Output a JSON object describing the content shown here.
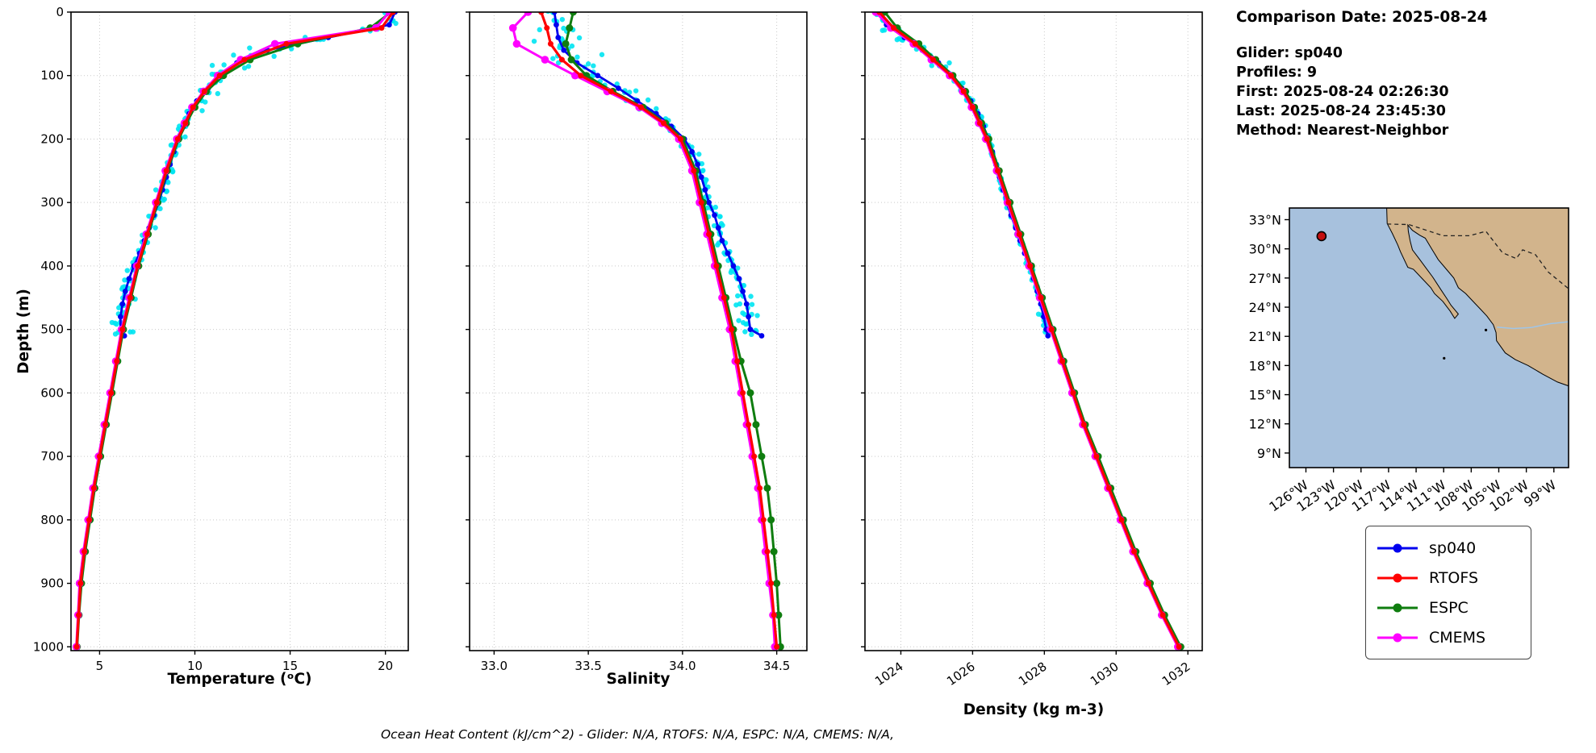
{
  "info_panel": {
    "comparison_date": "Comparison Date: 2025-08-24",
    "glider": "Glider: sp040",
    "profiles": "Profiles: 9",
    "first": "First: 2025-08-24 02:26:30",
    "last": "Last: 2025-08-24 23:45:30",
    "method": "Method: Nearest-Neighbor"
  },
  "footnote": "Ocean Heat Content (kJ/cm^2) - Glider: N/A,  RTOFS: N/A,  ESPC: N/A,  CMEMS: N/A,",
  "legend": {
    "items": [
      {
        "label": "sp040",
        "color": "#0000ee"
      },
      {
        "label": "RTOFS",
        "color": "#ff0000"
      },
      {
        "label": "ESPC",
        "color": "#0f7d0f"
      },
      {
        "label": "CMEMS",
        "color": "#ff00ff"
      }
    ]
  },
  "map": {
    "ocean_color": "#a7c1dd",
    "land_color": "#d2b48c",
    "lat_ticks": [
      {
        "v": 33,
        "label": "33°N"
      },
      {
        "v": 30,
        "label": "30°N"
      },
      {
        "v": 27,
        "label": "27°N"
      },
      {
        "v": 24,
        "label": "24°N"
      },
      {
        "v": 21,
        "label": "21°N"
      },
      {
        "v": 18,
        "label": "18°N"
      },
      {
        "v": 15,
        "label": "15°N"
      },
      {
        "v": 12,
        "label": "12°N"
      },
      {
        "v": 9,
        "label": "9°N"
      }
    ],
    "lon_ticks": [
      {
        "v": -126,
        "label": "126°W"
      },
      {
        "v": -123,
        "label": "123°W"
      },
      {
        "v": -120,
        "label": "120°W"
      },
      {
        "v": -117,
        "label": "117°W"
      },
      {
        "v": -114,
        "label": "114°W"
      },
      {
        "v": -111,
        "label": "111°W"
      },
      {
        "v": -108,
        "label": "108°W"
      },
      {
        "v": -105,
        "label": "105°W"
      },
      {
        "v": -102,
        "label": "102°W"
      },
      {
        "v": -99,
        "label": "99°W"
      }
    ],
    "lon_range": [
      -127.8,
      -97.4
    ],
    "lat_range": [
      7.5,
      34.2
    ],
    "glider_position": {
      "lon": -124.3,
      "lat": 31.3,
      "marker_color": "#c41010"
    },
    "land_polygon": [
      [
        -97.4,
        34.2
      ],
      [
        -117.2,
        34.2
      ],
      [
        -117.15,
        32.6
      ],
      [
        -116.6,
        31.6
      ],
      [
        -116.0,
        30.4
      ],
      [
        -115.7,
        29.7
      ],
      [
        -114.9,
        28.1
      ],
      [
        -114.3,
        27.9
      ],
      [
        -113.3,
        26.9
      ],
      [
        -112.4,
        26.0
      ],
      [
        -112.0,
        25.4
      ],
      [
        -111.1,
        24.6
      ],
      [
        -110.3,
        23.6
      ],
      [
        -109.8,
        22.85
      ],
      [
        -109.4,
        23.3
      ],
      [
        -110.2,
        24.2
      ],
      [
        -110.6,
        24.8
      ],
      [
        -111.3,
        25.8
      ],
      [
        -112.2,
        27.1
      ],
      [
        -112.9,
        28.0
      ],
      [
        -113.6,
        28.9
      ],
      [
        -114.4,
        29.9
      ],
      [
        -114.65,
        30.8
      ],
      [
        -114.85,
        31.8
      ],
      [
        -114.9,
        32.45
      ],
      [
        -114.4,
        31.9
      ],
      [
        -113.6,
        31.4
      ],
      [
        -113.0,
        31.1
      ],
      [
        -112.3,
        30.0
      ],
      [
        -111.6,
        28.9
      ],
      [
        -110.7,
        27.9
      ],
      [
        -109.9,
        27.0
      ],
      [
        -109.4,
        26.0
      ],
      [
        -108.6,
        25.4
      ],
      [
        -107.9,
        24.7
      ],
      [
        -107.0,
        23.8
      ],
      [
        -106.3,
        23.1
      ],
      [
        -105.6,
        22.2
      ],
      [
        -105.3,
        21.4
      ],
      [
        -105.25,
        20.55
      ],
      [
        -104.3,
        19.3
      ],
      [
        -103.2,
        18.6
      ],
      [
        -101.8,
        18.0
      ],
      [
        -100.2,
        17.1
      ],
      [
        -98.6,
        16.3
      ],
      [
        -97.4,
        15.9
      ]
    ],
    "border_dashed": [
      [
        -117.15,
        32.55
      ],
      [
        -114.8,
        32.5
      ],
      [
        -111.05,
        31.35
      ],
      [
        -108.2,
        31.35
      ],
      [
        -106.4,
        31.8
      ],
      [
        -104.6,
        29.6
      ],
      [
        -103.1,
        29.0
      ],
      [
        -102.4,
        29.9
      ],
      [
        -101.0,
        29.4
      ],
      [
        -99.6,
        27.6
      ],
      [
        -97.4,
        25.9
      ]
    ],
    "river": [
      [
        -105.2,
        21.95
      ],
      [
        -103.4,
        21.8
      ],
      [
        -101.5,
        21.9
      ],
      [
        -99.4,
        22.3
      ],
      [
        -97.4,
        22.5
      ]
    ],
    "islands": [
      [
        -110.95,
        18.75
      ],
      [
        -106.4,
        21.65
      ]
    ]
  },
  "chart_data": {
    "type": "line",
    "description": "Glider vs model vertical ocean profiles (value vs depth, depth increases downward)",
    "grid": true,
    "depth_axis": {
      "label": "Depth (m)",
      "range": [
        0,
        1006
      ],
      "ticks": [
        0,
        100,
        200,
        300,
        400,
        500,
        600,
        700,
        800,
        900,
        1000
      ],
      "tick_labels": [
        "0",
        "100",
        "200",
        "300",
        "400",
        "500",
        "600",
        "700",
        "800",
        "900",
        "1000"
      ]
    },
    "panels": [
      {
        "id": "temperature",
        "xlabel": "Temperature (ᵒC)",
        "xlim": [
          3.5,
          21.2
        ],
        "xticks": [
          5,
          10,
          15,
          20
        ],
        "xtick_labels": [
          "5",
          "10",
          "15",
          "20"
        ],
        "rotate_xticks": false
      },
      {
        "id": "salinity",
        "xlabel": "Salinity",
        "xlim": [
          32.87,
          34.66
        ],
        "xticks": [
          33.0,
          33.5,
          34.0,
          34.5
        ],
        "xtick_labels": [
          "33.0",
          "33.5",
          "34.0",
          "34.5"
        ],
        "rotate_xticks": false
      },
      {
        "id": "density",
        "xlabel": "Density (kg m-3)",
        "xlim": [
          1023.0,
          1032.4
        ],
        "xticks": [
          1024,
          1026,
          1028,
          1030,
          1032
        ],
        "xtick_labels": [
          "1024",
          "1026",
          "1028",
          "1030",
          "1032"
        ],
        "rotate_xticks": true
      }
    ],
    "series": [
      {
        "name": "sp040",
        "color": "#0000ee",
        "marker_r": 3.4,
        "line_w": 2.8,
        "depths": [
          0,
          20,
          40,
          60,
          80,
          100,
          120,
          140,
          160,
          180,
          200,
          220,
          240,
          260,
          280,
          300,
          320,
          340,
          360,
          380,
          400,
          420,
          440,
          460,
          480,
          500,
          510
        ],
        "temperature": [
          20.5,
          20.2,
          17.0,
          13.8,
          12.2,
          11.4,
          10.7,
          10.1,
          9.7,
          9.4,
          9.15,
          8.9,
          8.7,
          8.5,
          8.3,
          8.1,
          7.85,
          7.6,
          7.35,
          7.1,
          6.8,
          6.55,
          6.35,
          6.2,
          6.1,
          6.1,
          6.3
        ],
        "salinity": [
          33.32,
          33.33,
          33.34,
          33.37,
          33.44,
          33.55,
          33.66,
          33.76,
          33.86,
          33.94,
          34.01,
          34.05,
          34.08,
          34.1,
          34.12,
          34.14,
          34.17,
          34.19,
          34.21,
          34.24,
          34.27,
          34.3,
          34.32,
          34.34,
          34.35,
          34.36,
          34.42
        ],
        "density": [
          1023.35,
          1023.6,
          1024.1,
          1024.6,
          1025.05,
          1025.4,
          1025.7,
          1025.95,
          1026.15,
          1026.3,
          1026.45,
          1026.55,
          1026.65,
          1026.75,
          1026.85,
          1026.95,
          1027.07,
          1027.2,
          1027.32,
          1027.45,
          1027.58,
          1027.7,
          1027.8,
          1027.9,
          1027.98,
          1028.05,
          1028.1
        ]
      },
      {
        "name": "RTOFS",
        "color": "#ff0000",
        "marker_r": 3.5,
        "line_w": 3.2,
        "depths": [
          0,
          25,
          50,
          75,
          100,
          125,
          150,
          175,
          200,
          250,
          300,
          350,
          400,
          450,
          500,
          550,
          600,
          650,
          700,
          750,
          800,
          850,
          900,
          950,
          1000
        ],
        "temperature": [
          20.4,
          19.8,
          14.8,
          12.6,
          11.3,
          10.5,
          9.9,
          9.5,
          9.1,
          8.5,
          8.0,
          7.5,
          7.0,
          6.6,
          6.2,
          5.9,
          5.6,
          5.3,
          5.0,
          4.7,
          4.45,
          4.2,
          4.0,
          3.9,
          3.8
        ],
        "salinity": [
          33.25,
          33.28,
          33.3,
          33.36,
          33.46,
          33.62,
          33.78,
          33.9,
          33.99,
          34.06,
          34.1,
          34.14,
          34.18,
          34.22,
          34.26,
          34.29,
          34.32,
          34.35,
          34.38,
          34.41,
          34.43,
          34.45,
          34.47,
          34.485,
          34.5
        ],
        "density": [
          1023.4,
          1023.8,
          1024.4,
          1024.9,
          1025.4,
          1025.75,
          1026.0,
          1026.2,
          1026.4,
          1026.7,
          1027.0,
          1027.3,
          1027.6,
          1027.9,
          1028.2,
          1028.5,
          1028.8,
          1029.1,
          1029.45,
          1029.8,
          1030.15,
          1030.5,
          1030.9,
          1031.3,
          1031.75
        ]
      },
      {
        "name": "ESPC",
        "color": "#0f7d0f",
        "marker_r": 4.5,
        "line_w": 3.0,
        "depths": [
          0,
          25,
          50,
          75,
          100,
          125,
          150,
          175,
          200,
          250,
          300,
          350,
          400,
          450,
          500,
          550,
          600,
          650,
          700,
          750,
          800,
          850,
          900,
          950,
          1000
        ],
        "temperature": [
          20.3,
          19.2,
          15.4,
          12.9,
          11.5,
          10.6,
          10.0,
          9.55,
          9.15,
          8.55,
          8.05,
          7.55,
          7.05,
          6.65,
          6.25,
          5.95,
          5.65,
          5.35,
          5.05,
          4.75,
          4.5,
          4.25,
          4.05,
          3.92,
          3.82
        ],
        "salinity": [
          33.42,
          33.4,
          33.38,
          33.41,
          33.49,
          33.63,
          33.79,
          33.91,
          34.0,
          34.07,
          34.11,
          34.15,
          34.19,
          34.23,
          34.27,
          34.31,
          34.36,
          34.39,
          34.42,
          34.45,
          34.47,
          34.485,
          34.5,
          34.51,
          34.52
        ],
        "density": [
          1023.55,
          1023.9,
          1024.5,
          1024.97,
          1025.45,
          1025.8,
          1026.05,
          1026.25,
          1026.45,
          1026.74,
          1027.04,
          1027.34,
          1027.64,
          1027.94,
          1028.24,
          1028.54,
          1028.84,
          1029.14,
          1029.5,
          1029.85,
          1030.2,
          1030.55,
          1030.95,
          1031.35,
          1031.8
        ]
      },
      {
        "name": "CMEMS",
        "color": "#ff00ff",
        "marker_r": 4.8,
        "line_w": 3.0,
        "depths": [
          0,
          25,
          50,
          75,
          100,
          125,
          150,
          175,
          200,
          250,
          300,
          350,
          400,
          450,
          500,
          550,
          600,
          650,
          700,
          750,
          800,
          850,
          900,
          950,
          1000
        ],
        "temperature": [
          20.2,
          19.5,
          14.2,
          12.4,
          11.2,
          10.45,
          9.85,
          9.45,
          9.05,
          8.45,
          7.95,
          7.45,
          6.95,
          6.55,
          6.15,
          5.85,
          5.55,
          5.25,
          4.95,
          4.65,
          4.4,
          4.15,
          3.95,
          3.87,
          3.78
        ],
        "salinity": [
          33.18,
          33.1,
          33.12,
          33.27,
          33.43,
          33.6,
          33.77,
          33.89,
          33.98,
          34.05,
          34.09,
          34.13,
          34.17,
          34.21,
          34.25,
          34.28,
          34.31,
          34.34,
          34.37,
          34.4,
          34.42,
          34.44,
          34.46,
          34.48,
          34.49
        ],
        "density": [
          1023.3,
          1023.72,
          1024.35,
          1024.85,
          1025.36,
          1025.72,
          1025.97,
          1026.17,
          1026.37,
          1026.67,
          1026.97,
          1027.27,
          1027.57,
          1027.87,
          1028.17,
          1028.47,
          1028.77,
          1029.07,
          1029.42,
          1029.77,
          1030.12,
          1030.47,
          1030.87,
          1031.27,
          1031.72
        ]
      }
    ],
    "glider_scatter": {
      "name": "sp040 raw profile scatter",
      "color": "#00e4f2",
      "profiles": 9,
      "max_depth": 510,
      "spread": {
        "temperature": 0.55,
        "salinity": 0.055,
        "density": 0.1
      }
    }
  }
}
